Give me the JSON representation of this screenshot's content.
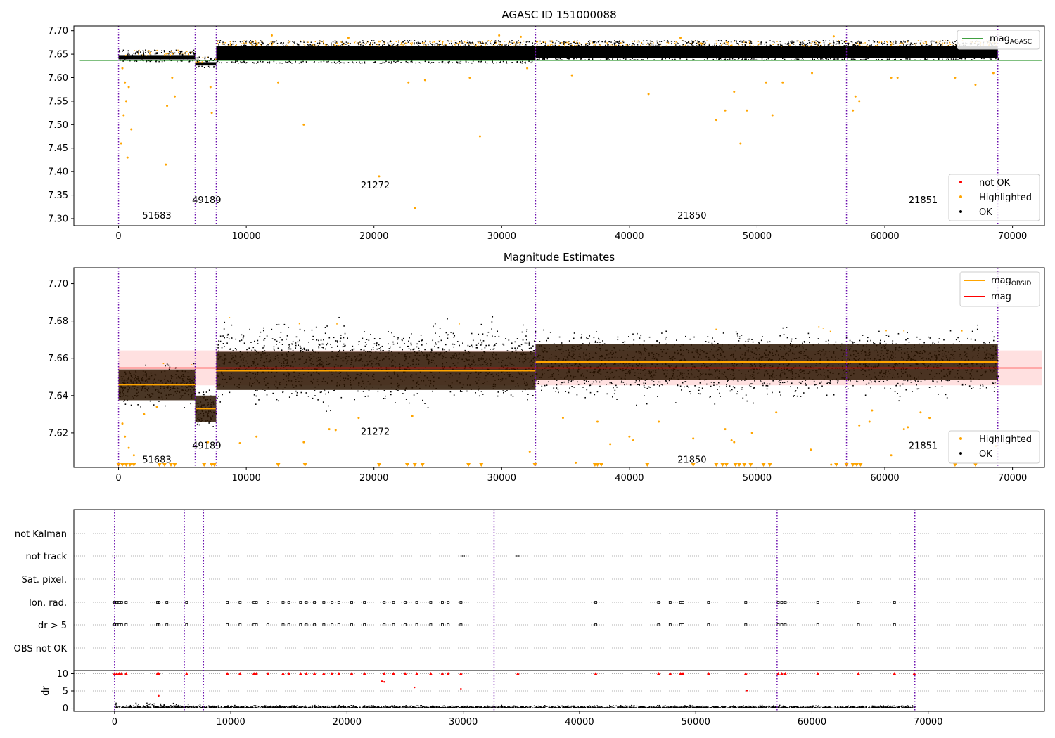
{
  "chart_data": [
    {
      "type": "scatter",
      "title": "AGASC ID 151000088",
      "xlim": [
        -3500,
        72500
      ],
      "ylim": [
        7.285,
        7.71
      ],
      "xticks": [
        0,
        10000,
        20000,
        30000,
        40000,
        50000,
        60000,
        70000
      ],
      "yticks": [
        7.3,
        7.35,
        7.4,
        7.45,
        7.5,
        7.55,
        7.6,
        7.65,
        7.7
      ],
      "ytick_labels": [
        "7.30",
        "7.35",
        "7.40",
        "7.45",
        "7.50",
        "7.55",
        "7.60",
        "7.65",
        "7.70"
      ],
      "obs_boundaries": [
        0,
        6000,
        7650,
        32650,
        57000,
        68850
      ],
      "obs_labels": [
        {
          "text": "51683",
          "x": 3000,
          "y": 7.3
        },
        {
          "text": "49189",
          "x": 6900,
          "y": 7.333
        },
        {
          "text": "21272",
          "x": 20100,
          "y": 7.364
        },
        {
          "text": "21850",
          "x": 44900,
          "y": 7.3
        },
        {
          "text": "21851",
          "x": 63000,
          "y": 7.333
        }
      ],
      "mag_agasc": 7.637,
      "mag_agasc_xrange": [
        0,
        72300
      ],
      "ok_bands": [
        {
          "x0": 0,
          "x1": 6000,
          "lo": 7.635,
          "hi": 7.66
        },
        {
          "x0": 6000,
          "x1": 7650,
          "lo": 7.622,
          "hi": 7.645
        },
        {
          "x0": 7650,
          "x1": 32650,
          "lo": 7.632,
          "hi": 7.68
        },
        {
          "x0": 32650,
          "x1": 57000,
          "lo": 7.638,
          "hi": 7.68
        },
        {
          "x0": 57000,
          "x1": 68850,
          "lo": 7.638,
          "hi": 7.68
        }
      ],
      "highlighted_points": [
        [
          300,
          7.62
        ],
        [
          500,
          7.59
        ],
        [
          800,
          7.58
        ],
        [
          600,
          7.55
        ],
        [
          400,
          7.52
        ],
        [
          1000,
          7.49
        ],
        [
          200,
          7.46
        ],
        [
          700,
          7.43
        ],
        [
          3700,
          7.415
        ],
        [
          3800,
          7.54
        ],
        [
          4200,
          7.6
        ],
        [
          4400,
          7.56
        ],
        [
          7300,
          7.525
        ],
        [
          7200,
          7.58
        ],
        [
          14500,
          7.5
        ],
        [
          12500,
          7.59
        ],
        [
          20400,
          7.39
        ],
        [
          23200,
          7.322
        ],
        [
          22700,
          7.59
        ],
        [
          24000,
          7.595
        ],
        [
          28300,
          7.475
        ],
        [
          27500,
          7.6
        ],
        [
          32000,
          7.62
        ],
        [
          35500,
          7.605
        ],
        [
          41500,
          7.565
        ],
        [
          46800,
          7.51
        ],
        [
          47500,
          7.53
        ],
        [
          48200,
          7.57
        ],
        [
          48700,
          7.46
        ],
        [
          49200,
          7.53
        ],
        [
          50700,
          7.59
        ],
        [
          51200,
          7.52
        ],
        [
          52000,
          7.59
        ],
        [
          54300,
          7.61
        ],
        [
          57500,
          7.53
        ],
        [
          57700,
          7.56
        ],
        [
          58000,
          7.55
        ],
        [
          60500,
          7.6
        ],
        [
          61000,
          7.6
        ],
        [
          65500,
          7.6
        ],
        [
          67100,
          7.585
        ],
        [
          68500,
          7.61
        ],
        [
          12000,
          7.69
        ],
        [
          18000,
          7.685
        ],
        [
          29800,
          7.69
        ],
        [
          31500,
          7.687
        ],
        [
          44000,
          7.685
        ],
        [
          56000,
          7.688
        ]
      ],
      "legends": [
        {
          "entries": [
            {
              "label": "mag",
              "sub": "AGASC",
              "color": "#008000",
              "kind": "line"
            }
          ],
          "loc": "upper right"
        },
        {
          "entries": [
            {
              "label": "not OK",
              "color": "#ff0000",
              "kind": "dot"
            },
            {
              "label": "Highlighted",
              "color": "#ffa500",
              "kind": "dot"
            },
            {
              "label": "OK",
              "color": "#000000",
              "kind": "dot"
            }
          ],
          "loc": "lower right"
        }
      ]
    },
    {
      "type": "scatter",
      "title": "Magnitude Estimates",
      "xlim": [
        -3500,
        72500
      ],
      "ylim": [
        7.6015,
        7.7085
      ],
      "xticks": [
        0,
        10000,
        20000,
        30000,
        40000,
        50000,
        60000,
        70000
      ],
      "yticks": [
        7.62,
        7.64,
        7.66,
        7.68,
        7.7
      ],
      "ytick_labels": [
        "7.62",
        "7.64",
        "7.66",
        "7.68",
        "7.70"
      ],
      "obs_boundaries": [
        0,
        6000,
        7650,
        32650,
        57000,
        68850
      ],
      "obs_labels": [
        {
          "text": "51683",
          "x": 3000,
          "y": 7.604
        },
        {
          "text": "49189",
          "x": 6900,
          "y": 7.6115
        },
        {
          "text": "21272",
          "x": 20100,
          "y": 7.619
        },
        {
          "text": "21850",
          "x": 44900,
          "y": 7.604
        },
        {
          "text": "21851",
          "x": 63000,
          "y": 7.6115
        }
      ],
      "mag": 7.6548,
      "mag_band": [
        7.6455,
        7.6642
      ],
      "mag_xrange": [
        0,
        72300
      ],
      "mag_obsid": [
        {
          "x0": 0,
          "x1": 6000,
          "y": 7.6458,
          "band": [
            7.6375,
            7.654
          ]
        },
        {
          "x0": 6000,
          "x1": 7650,
          "y": 7.633,
          "band": [
            7.626,
            7.64
          ]
        },
        {
          "x0": 7650,
          "x1": 32650,
          "y": 7.6533,
          "band": [
            7.643,
            7.6635
          ]
        },
        {
          "x0": 32650,
          "x1": 57000,
          "y": 7.658,
          "band": [
            7.6485,
            7.6675
          ]
        },
        {
          "x0": 57000,
          "x1": 68850,
          "y": 7.658,
          "band": [
            7.6485,
            7.6675
          ]
        }
      ],
      "ok_bands": [
        {
          "x0": 0,
          "x1": 6000,
          "lo": 7.632,
          "hi": 7.66
        },
        {
          "x0": 6000,
          "x1": 7650,
          "lo": 7.62,
          "hi": 7.647
        },
        {
          "x0": 7650,
          "x1": 32650,
          "lo": 7.63,
          "hi": 7.685
        },
        {
          "x0": 32650,
          "x1": 57000,
          "lo": 7.634,
          "hi": 7.68
        },
        {
          "x0": 57000,
          "x1": 68850,
          "lo": 7.636,
          "hi": 7.68
        }
      ],
      "highlighted_points": [
        [
          300,
          7.625
        ],
        [
          500,
          7.618
        ],
        [
          800,
          7.612
        ],
        [
          1200,
          7.608
        ],
        [
          2000,
          7.63
        ],
        [
          3000,
          7.634
        ],
        [
          7000,
          7.615
        ],
        [
          9500,
          7.6145
        ],
        [
          10800,
          7.618
        ],
        [
          14500,
          7.615
        ],
        [
          16500,
          7.622
        ],
        [
          17000,
          7.6215
        ],
        [
          18800,
          7.628
        ],
        [
          23000,
          7.629
        ],
        [
          32200,
          7.61
        ],
        [
          34800,
          7.628
        ],
        [
          35800,
          7.604
        ],
        [
          37500,
          7.626
        ],
        [
          38500,
          7.614
        ],
        [
          40000,
          7.618
        ],
        [
          40300,
          7.616
        ],
        [
          42300,
          7.626
        ],
        [
          45000,
          7.617
        ],
        [
          47500,
          7.622
        ],
        [
          48000,
          7.616
        ],
        [
          48200,
          7.615
        ],
        [
          49600,
          7.62
        ],
        [
          51500,
          7.631
        ],
        [
          54200,
          7.611
        ],
        [
          55800,
          7.603
        ],
        [
          58000,
          7.624
        ],
        [
          58800,
          7.626
        ],
        [
          59000,
          7.632
        ],
        [
          60500,
          7.608
        ],
        [
          61500,
          7.622
        ],
        [
          61800,
          7.623
        ],
        [
          62800,
          7.631
        ],
        [
          63500,
          7.628
        ],
        [
          68700,
          7.613
        ]
      ],
      "clipped_markers_x": [
        0,
        300,
        600,
        900,
        1200,
        3200,
        3600,
        4100,
        4400,
        6700,
        7300,
        7500,
        12500,
        14600,
        20400,
        22600,
        23200,
        23800,
        27400,
        28400,
        32600,
        37300,
        37500,
        37800,
        41400,
        45000,
        46800,
        47300,
        47600,
        48300,
        48600,
        49000,
        49500,
        50500,
        51000,
        56200,
        57000,
        57500,
        57800,
        58100,
        65500,
        67100
      ],
      "legends": [
        {
          "entries": [
            {
              "label": "mag",
              "sub": "OBSID",
              "color": "#ffa500",
              "kind": "line"
            },
            {
              "label": "mag",
              "color": "#ff0000",
              "kind": "line"
            }
          ],
          "loc": "upper right"
        },
        {
          "entries": [
            {
              "label": "Highlighted",
              "color": "#ffa500",
              "kind": "dot"
            },
            {
              "label": "OK",
              "color": "#000000",
              "kind": "dot"
            }
          ],
          "loc": "lower right"
        }
      ]
    },
    {
      "type": "scatter",
      "xlim": [
        -3500,
        80000
      ],
      "flag_labels": [
        "not Kalman",
        "not track",
        "Sat. pixel.",
        "Ion. rad.",
        "dr > 5",
        "OBS not OK"
      ],
      "obs_boundaries": [
        0,
        6000,
        7650,
        32650,
        57000,
        68850
      ],
      "flag_points": {
        "not track": [
          29900,
          30000,
          34700,
          54400
        ],
        "Ion. rad.": [
          0,
          200,
          400,
          600,
          1000,
          3700,
          3800,
          4500,
          6200,
          9700,
          10800,
          12000,
          12200,
          13200,
          14500,
          15000,
          16000,
          16500,
          17200,
          18000,
          18700,
          19300,
          20400,
          21500,
          23200,
          24000,
          25000,
          26000,
          27200,
          28200,
          28700,
          29800,
          41400,
          46800,
          47800,
          48700,
          48900,
          51100,
          54300,
          57100,
          57400,
          57700,
          60500,
          64000,
          67100
        ],
        "dr > 5": [
          0,
          200,
          400,
          600,
          1000,
          3700,
          3800,
          4500,
          6200,
          9700,
          10800,
          12000,
          12200,
          13200,
          14500,
          15000,
          16000,
          16500,
          17200,
          18000,
          18700,
          19300,
          20400,
          21500,
          23200,
          24000,
          25000,
          26000,
          27200,
          28200,
          28700,
          29800,
          41400,
          46800,
          47800,
          48700,
          48900,
          51100,
          54300,
          57100,
          57400,
          57700,
          60500,
          64000,
          67100
        ]
      },
      "dr_panel": {
        "ylabel": "dr",
        "ylim": [
          -0.3,
          10.3
        ],
        "yticks": [
          0,
          5,
          10
        ],
        "ytick_labels": [
          "0",
          "5",
          "10"
        ],
        "clipped_red_x": [
          0,
          200,
          400,
          600,
          1000,
          3700,
          3800,
          6200,
          9700,
          10800,
          12000,
          12200,
          13200,
          14500,
          15000,
          16000,
          16500,
          17200,
          18000,
          18700,
          19300,
          20400,
          21500,
          23200,
          24000,
          25000,
          26000,
          27200,
          28200,
          28700,
          29800,
          34700,
          41400,
          46800,
          47800,
          48700,
          48900,
          51100,
          54300,
          57100,
          57400,
          57700,
          60500,
          64000,
          67100,
          68800
        ],
        "red_points": [
          [
            3800,
            3.6
          ],
          [
            23200,
            7.6
          ],
          [
            25800,
            6.0
          ],
          [
            29800,
            5.6
          ],
          [
            54400,
            5.1
          ],
          [
            23000,
            7.8
          ]
        ]
      },
      "xticks": [
        0,
        10000,
        20000,
        30000,
        40000,
        50000,
        60000,
        70000
      ]
    }
  ]
}
